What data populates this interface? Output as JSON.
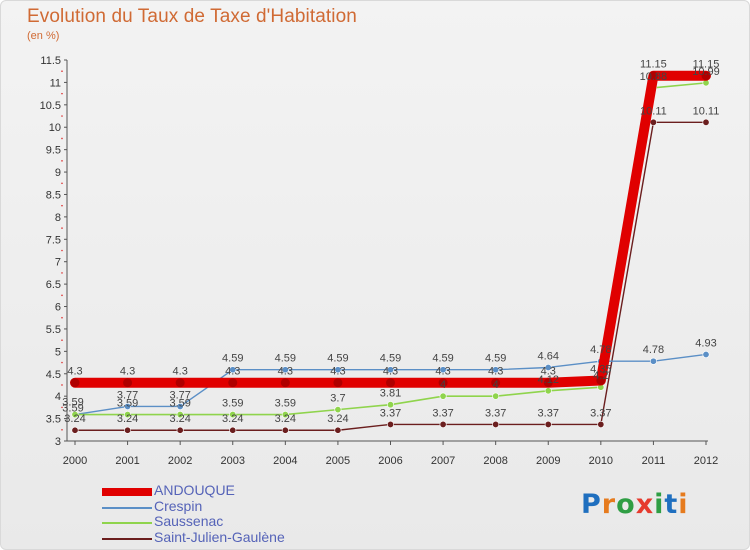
{
  "header": {
    "title": "Evolution du Taux de Taxe d'Habitation",
    "subtitle": "(en %)"
  },
  "logo": {
    "text": "Proxiti",
    "letters": [
      "P",
      "r",
      "o",
      "x",
      "i",
      "t",
      "i"
    ],
    "colors": [
      "#1f6fbf",
      "#e67b1e",
      "#2f9e44",
      "#e63b2e",
      "#2f9e44",
      "#1f6fbf",
      "#e67b1e"
    ]
  },
  "chart_data": {
    "type": "line",
    "title": "Evolution du Taux de Taxe d'Habitation",
    "subtitle": "(en %)",
    "xlabel": "",
    "ylabel": "",
    "x": [
      "2000",
      "2001",
      "2002",
      "2003",
      "2004",
      "2005",
      "2006",
      "2007",
      "2008",
      "2009",
      "2010",
      "2011",
      "2012"
    ],
    "ylim": [
      3,
      11.5
    ],
    "yticks": [
      3,
      3.5,
      4,
      4.5,
      5,
      5.5,
      6,
      6.5,
      7,
      7.5,
      8,
      8.5,
      9,
      9.5,
      10,
      10.5,
      11,
      11.5
    ],
    "ytick_labels": [
      "3",
      "3.5",
      "4",
      "4.5",
      "5",
      "5.5",
      "6",
      "6.5",
      "7",
      "7.5",
      "8",
      "8.5",
      "9",
      "9.5",
      "10",
      "10.5",
      "11",
      "11.5"
    ],
    "grid": false,
    "legend_position": "bottom-left",
    "series": [
      {
        "name": "ANDOUQUE",
        "color": "#e00000",
        "values": [
          4.3,
          4.3,
          4.3,
          4.3,
          4.3,
          4.3,
          4.3,
          4.3,
          4.3,
          4.3,
          4.35,
          11.15,
          11.15
        ],
        "labels": [
          "4.3",
          "4.3",
          "4.3",
          "4.3",
          "4.3",
          "4.3",
          "4.3",
          "4.3",
          "4.3",
          "4.3",
          "4.35",
          "11.15",
          "11.15"
        ]
      },
      {
        "name": "Crespin",
        "color": "#5b8fc6",
        "values": [
          3.59,
          3.77,
          3.77,
          4.59,
          4.59,
          4.59,
          4.59,
          4.59,
          4.59,
          4.64,
          4.78,
          4.78,
          4.93
        ],
        "labels": [
          "3.59",
          "3.77",
          "3.77",
          "4.59",
          "4.59",
          "4.59",
          "4.59",
          "4.59",
          "4.59",
          "4.64",
          "4.78",
          "4.78",
          "4.93"
        ]
      },
      {
        "name": "Saussenac",
        "color": "#8fd44c",
        "values": [
          3.59,
          3.59,
          3.59,
          3.59,
          3.59,
          3.7,
          3.81,
          4.0,
          4.0,
          4.12,
          4.2,
          10.88,
          10.99
        ],
        "labels": [
          "3.59",
          "3.59",
          "3.59",
          "3.59",
          "3.59",
          "3.7",
          "3.81",
          "4",
          "4",
          "4.12",
          "4.2",
          "10.88",
          "10.99"
        ]
      },
      {
        "name": "Saint-Julien-Gaulène",
        "color": "#6b1e1e",
        "values": [
          3.24,
          3.24,
          3.24,
          3.24,
          3.24,
          3.24,
          3.37,
          3.37,
          3.37,
          3.37,
          3.37,
          10.11,
          10.11
        ],
        "labels": [
          "3.24",
          "3.24",
          "3.24",
          "3.24",
          "3.24",
          "3.24",
          "3.37",
          "3.37",
          "3.37",
          "3.37",
          "3.37",
          "10.11",
          "10.11"
        ]
      }
    ]
  }
}
